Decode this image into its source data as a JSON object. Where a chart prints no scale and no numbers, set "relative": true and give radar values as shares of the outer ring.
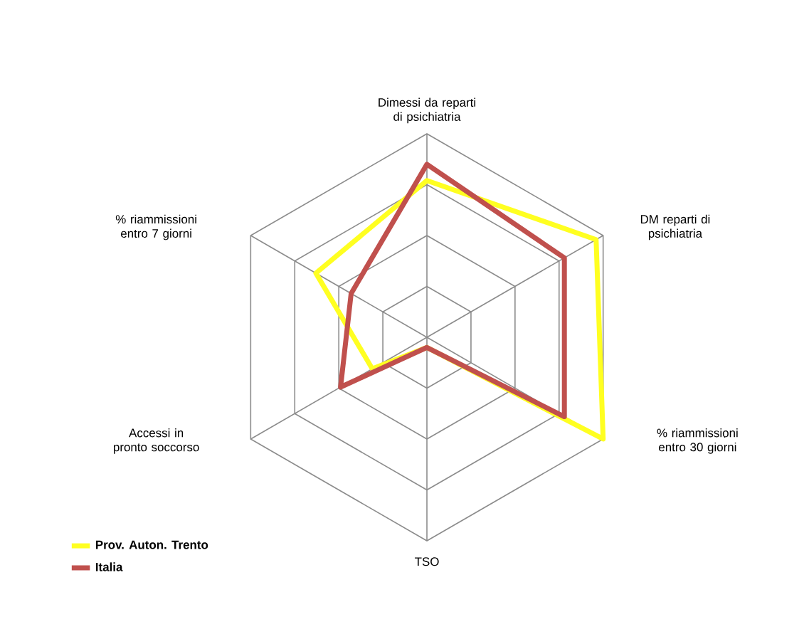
{
  "chart_data": {
    "type": "radar",
    "relative": true,
    "categories": [
      "Dimessi da reparti di psichiatria",
      "DM reparti di psichiatria",
      "% riammissioni entro 30 giorni",
      "TSO",
      "Accessi in pronto soccorso",
      "% riammissioni entro 7 giorni"
    ],
    "series": [
      {
        "name": "Prov. Auton. Trento",
        "color": "#ffff21",
        "values": [
          0.77,
          0.96,
          1.0,
          0.05,
          0.31,
          0.63
        ]
      },
      {
        "name": "Italia",
        "color": "#c0504d",
        "values": [
          0.85,
          0.78,
          0.78,
          0.05,
          0.49,
          0.43
        ]
      }
    ],
    "legend": "bottom left"
  }
}
